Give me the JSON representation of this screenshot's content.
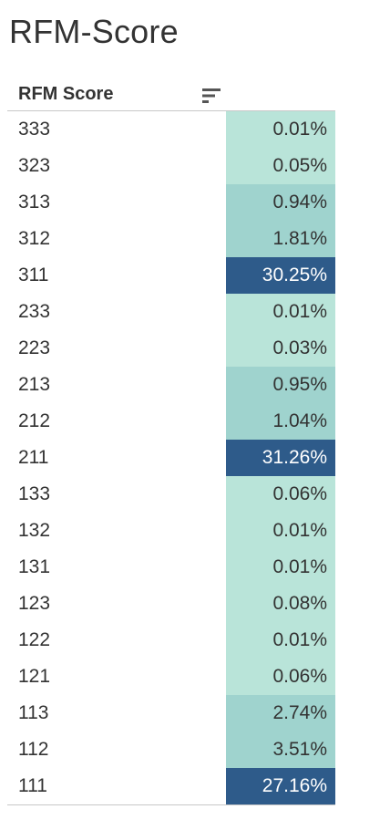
{
  "title": "RFM-Score",
  "header": {
    "label": "RFM Score",
    "sort_icon": "sort-descending-icon"
  },
  "colors": {
    "low": "#b9e4d9",
    "mid": "#9fd3ce",
    "high": "#2e5b8a",
    "text_dark": "#333333",
    "text_light": "#ffffff"
  },
  "chart_data": {
    "type": "heatmap",
    "title": "RFM-Score",
    "column_header": "RFM Score",
    "categories": [
      "333",
      "323",
      "313",
      "312",
      "311",
      "233",
      "223",
      "213",
      "212",
      "211",
      "133",
      "132",
      "131",
      "123",
      "122",
      "121",
      "113",
      "112",
      "111"
    ],
    "values": [
      0.01,
      0.05,
      0.94,
      1.81,
      30.25,
      0.01,
      0.03,
      0.95,
      1.04,
      31.26,
      0.06,
      0.01,
      0.01,
      0.08,
      0.01,
      0.06,
      2.74,
      3.51,
      27.16
    ],
    "labels": [
      "0.01%",
      "0.05%",
      "0.94%",
      "1.81%",
      "30.25%",
      "0.01%",
      "0.03%",
      "0.95%",
      "1.04%",
      "31.26%",
      "0.06%",
      "0.01%",
      "0.01%",
      "0.08%",
      "0.01%",
      "0.06%",
      "2.74%",
      "3.51%",
      "27.16%"
    ],
    "unit": "%"
  }
}
